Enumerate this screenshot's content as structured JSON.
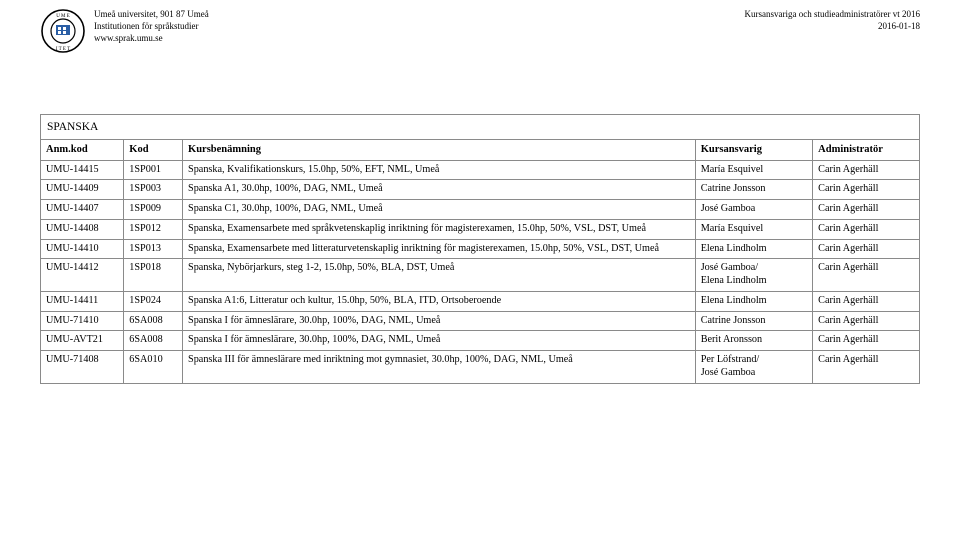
{
  "header": {
    "institution_line1": "Umeå universitet, 901 87 Umeå",
    "institution_line2": "Institutionen för språkstudier",
    "institution_line3": "www.sprak.umu.se",
    "right_line1": "Kursansvariga och studieadministratörer vt 2016",
    "right_line2": "2016-01-18"
  },
  "section_title": "SPANSKA",
  "columns": {
    "anmkod": "Anm.kod",
    "kod": "Kod",
    "kursbenamning": "Kursbenämning",
    "kursansvarig": "Kursansvarig",
    "administrator": "Administratör"
  },
  "rows": [
    {
      "anmkod": "UMU-14415",
      "kod": "1SP001",
      "name": "Spanska, Kvalifikationskurs, 15.0hp, 50%, EFT, NML, Umeå",
      "ansv": "María Esquivel",
      "admin": "Carin Agerhäll"
    },
    {
      "anmkod": "UMU-14409",
      "kod": "1SP003",
      "name": "Spanska A1, 30.0hp, 100%, DAG, NML, Umeå",
      "ansv": "Catrine Jonsson",
      "admin": "Carin Agerhäll"
    },
    {
      "anmkod": "UMU-14407",
      "kod": "1SP009",
      "name": "Spanska C1, 30.0hp, 100%, DAG, NML, Umeå",
      "ansv": "José Gamboa",
      "admin": "Carin Agerhäll"
    },
    {
      "anmkod": "UMU-14408",
      "kod": "1SP012",
      "name": "Spanska, Examensarbete med språkvetenskaplig inriktning för magisterexamen, 15.0hp, 50%, VSL, DST, Umeå",
      "ansv": "María Esquivel",
      "admin": "Carin Agerhäll"
    },
    {
      "anmkod": "UMU-14410",
      "kod": "1SP013",
      "name": "Spanska, Examensarbete med litteraturvetenskaplig inriktning för magisterexamen, 15.0hp, 50%, VSL, DST, Umeå",
      "ansv": "Elena Lindholm",
      "admin": "Carin Agerhäll"
    },
    {
      "anmkod": "UMU-14412",
      "kod": "1SP018",
      "name": "Spanska, Nybörjarkurs, steg 1-2, 15.0hp, 50%, BLA, DST, Umeå",
      "ansv": "José Gamboa/\nElena Lindholm",
      "admin": "Carin Agerhäll"
    },
    {
      "anmkod": "UMU-14411",
      "kod": "1SP024",
      "name": "Spanska A1:6, Litteratur och kultur, 15.0hp, 50%, BLA, ITD, Ortsoberoende",
      "ansv": "Elena Lindholm",
      "admin": "Carin Agerhäll"
    },
    {
      "anmkod": "UMU-71410",
      "kod": "6SA008",
      "name": "Spanska I för ämneslärare, 30.0hp, 100%, DAG, NML, Umeå",
      "ansv": "Catrine Jonsson",
      "admin": "Carin Agerhäll"
    },
    {
      "anmkod": "UMU-AVT21",
      "kod": "6SA008",
      "name": "Spanska I för ämneslärare, 30.0hp, 100%, DAG, NML, Umeå",
      "ansv": "Berit Aronsson",
      "admin": "Carin Agerhäll"
    },
    {
      "anmkod": "UMU-71408",
      "kod": "6SA010",
      "name": "Spanska III för ämneslärare med inriktning mot gymnasiet, 30.0hp, 100%, DAG, NML, Umeå",
      "ansv": "Per Löfstrand/\nJosé Gamboa",
      "admin": "Carin Agerhäll"
    }
  ],
  "logo_colors": {
    "stroke": "#000000",
    "fill": "#ffffff"
  }
}
